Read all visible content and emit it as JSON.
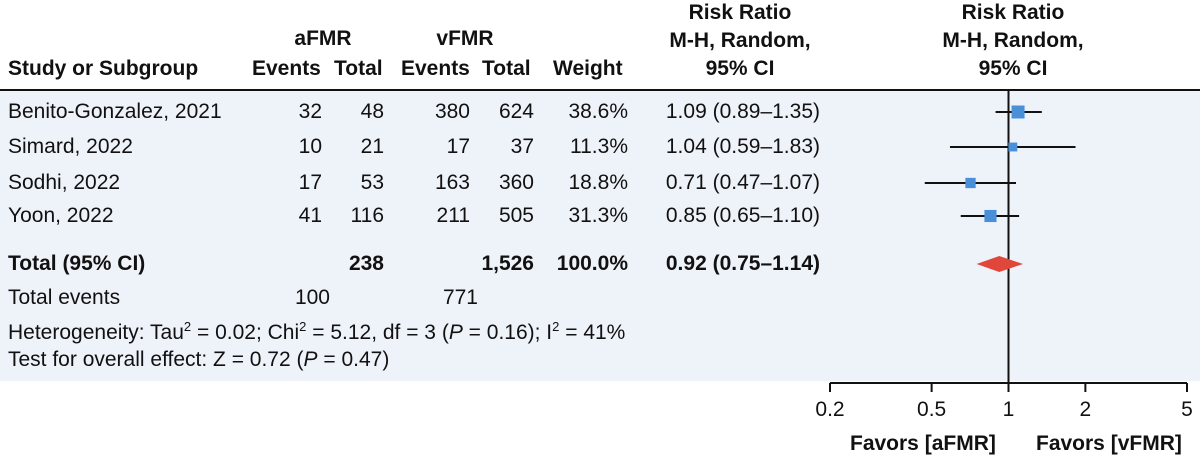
{
  "header": {
    "group_a": "aFMR",
    "group_b": "vFMR",
    "col_study": "Study or Subgroup",
    "col_events": "Events",
    "col_total": "Total",
    "col_weight": "Weight",
    "rr_table": [
      "Risk Ratio",
      "M-H, Random,",
      "95% CI"
    ],
    "rr_plot": [
      "Risk Ratio",
      "M-H, Random,",
      "95% CI"
    ]
  },
  "summary": {
    "total_label": "Total (95% CI)",
    "total_a": "238",
    "total_b": "1,526",
    "total_weight": "100.0%",
    "total_ci": "0.92 (0.75–1.14)",
    "events_label": "Total events",
    "events_a": "100",
    "events_b": "771",
    "het_prefix": "Heterogeneity: Tau",
    "het_tau": "= 0.02; Chi",
    "het_chi": "= 5.12, df = 3 (",
    "het_p": "P",
    "het_pval": " = 0.16); I",
    "het_i": "= 41%",
    "sup2": "2",
    "effect_prefix": "Test for overall effect: Z = 0.72 (",
    "effect_p": "P",
    "effect_suffix": " = 0.47)"
  },
  "favors": {
    "left": "Favors [aFMR]",
    "right": "Favors [vFMR]"
  },
  "chart_data": {
    "type": "forest",
    "scale": "log",
    "xlim": [
      0.2,
      5
    ],
    "ticks": [
      0.2,
      0.5,
      1,
      2,
      5
    ],
    "tick_labels": [
      "0.2",
      "0.5",
      "1",
      "2",
      "5"
    ],
    "studies": [
      {
        "name": "Benito-Gonzalez, 2021",
        "a_events": "32",
        "a_total": "48",
        "b_events": "380",
        "b_total": "624",
        "weight": "38.6%",
        "ci": "1.09 (0.89–1.35)",
        "rr": 1.09,
        "lo": 0.89,
        "hi": 1.35,
        "w": 38.6
      },
      {
        "name": "Simard, 2022",
        "a_events": "10",
        "a_total": "21",
        "b_events": "17",
        "b_total": "37",
        "weight": "11.3%",
        "ci": "1.04 (0.59–1.83)",
        "rr": 1.04,
        "lo": 0.59,
        "hi": 1.83,
        "w": 11.3
      },
      {
        "name": "Sodhi, 2022",
        "a_events": "17",
        "a_total": "53",
        "b_events": "163",
        "b_total": "360",
        "weight": "18.8%",
        "ci": "0.71 (0.47–1.07)",
        "rr": 0.71,
        "lo": 0.47,
        "hi": 1.07,
        "w": 18.8
      },
      {
        "name": "Yoon, 2022",
        "a_events": "41",
        "a_total": "116",
        "b_events": "211",
        "b_total": "505",
        "weight": "31.3%",
        "ci": "0.85 (0.65–1.10)",
        "rr": 0.85,
        "lo": 0.65,
        "hi": 1.1,
        "w": 31.3
      }
    ],
    "overall": {
      "rr": 0.92,
      "lo": 0.75,
      "hi": 1.14
    },
    "colors": {
      "square": "#4a90d9",
      "diamond": "#e0473a",
      "line": "#111111",
      "background": "#eef2f9"
    }
  }
}
